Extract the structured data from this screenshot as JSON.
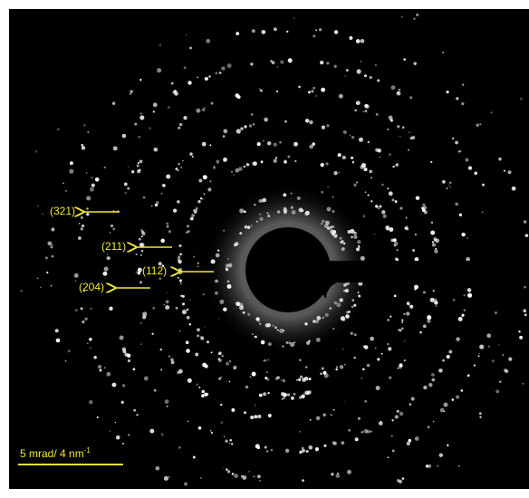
{
  "labels": [
    "(321)",
    "(211)",
    "(112)",
    "(204)"
  ],
  "scale_bar": {
    "text": "5 mrad/ 4 nm",
    "superscript": "-1"
  }
}
